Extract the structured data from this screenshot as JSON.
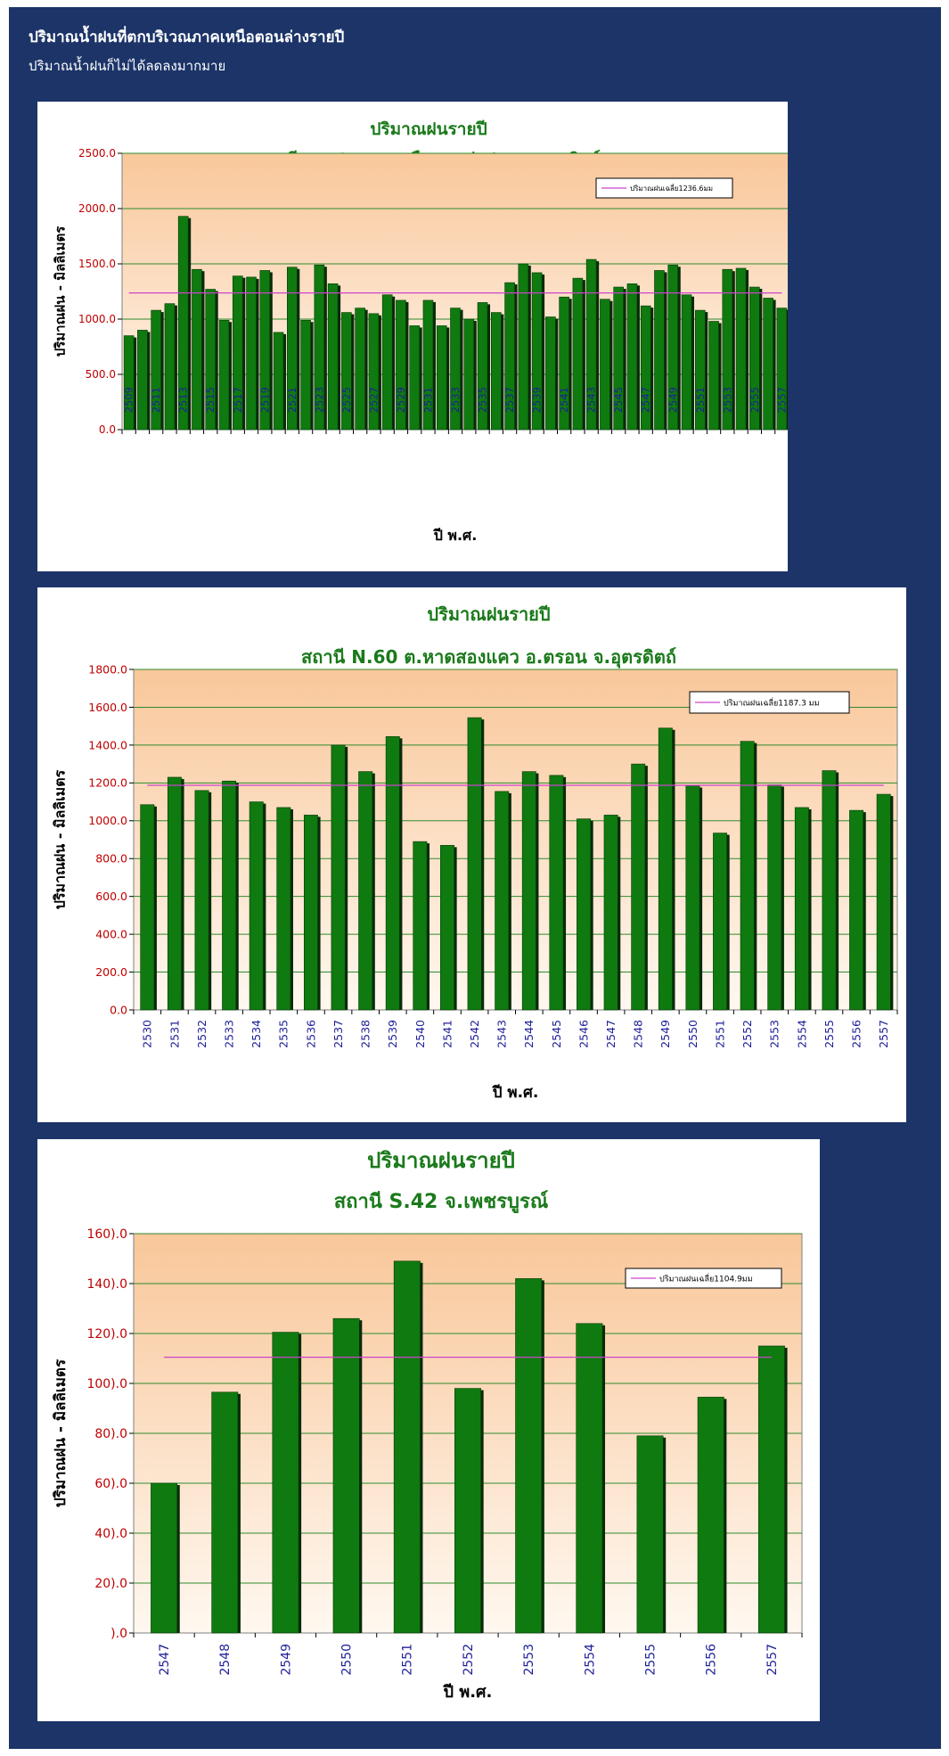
{
  "header": {
    "title": "ปริมาณน้ำฝนที่ตกบริเวณภาคเหนือตอนล่างรายปี",
    "subtitle": "ปริมาณน้ำฝนก็ไม่ได้ลดลงมากมาย"
  },
  "colors": {
    "background": "#1c3468",
    "bar": "#0f7a0f",
    "bar_shadow": "#0a2a0a",
    "average_line": "#cc44cc",
    "title": "#1a7a1a",
    "y_tick": "#c00000",
    "x_tick": "#1f1f99",
    "grid": "#2e8b2e"
  },
  "chart_data": [
    {
      "type": "bar",
      "title": "ปริมาณฝนรายปี",
      "subtitle": "สถานี N.12A  ต.ผาเลือด  อ.ท่าปลา  จ.อุตรดิตถ์",
      "xlabel": "ปี พ.ศ.",
      "ylabel": "ปริมาณฝน - มิลลิเมตร",
      "ylim": [
        0,
        2500
      ],
      "yticks": [
        "0.0",
        "500.0",
        "1000.0",
        "1500.0",
        "2000.0",
        "2500.0"
      ],
      "grid": true,
      "legend": {
        "label": "ปริมาณฝนเฉลี่ย1236.6มม",
        "placement": "top-right"
      },
      "average": 1236.6,
      "categories": [
        "2509",
        "2510",
        "2511",
        "2512",
        "2513",
        "2514",
        "2515",
        "2516",
        "2517",
        "2518",
        "2519",
        "2520",
        "2521",
        "2522",
        "2523",
        "2524",
        "2525",
        "2526",
        "2527",
        "2528",
        "2529",
        "2530",
        "2531",
        "2532",
        "2533",
        "2534",
        "2535",
        "2536",
        "2537",
        "2538",
        "2539",
        "2540",
        "2541",
        "2542",
        "2543",
        "2544",
        "2545",
        "2546",
        "2547",
        "2548",
        "2549",
        "2550",
        "2551",
        "2552",
        "2553",
        "2554",
        "2555",
        "2556",
        "2557"
      ],
      "tick_labels": [
        "2509",
        "",
        "2511",
        "",
        "2513",
        "",
        "2515",
        "",
        "2517",
        "",
        "2519",
        "",
        "2521",
        "",
        "2523",
        "",
        "2525",
        "",
        "2527",
        "",
        "2529",
        "",
        "2531",
        "",
        "2533",
        "",
        "2535",
        "",
        "2537",
        "",
        "2539",
        "",
        "2541",
        "",
        "2543",
        "",
        "2545",
        "",
        "2547",
        "",
        "2549",
        "",
        "2551",
        "",
        "2553",
        "",
        "2555",
        "",
        "2557"
      ],
      "values": [
        850,
        900,
        1080,
        1140,
        1930,
        1450,
        1270,
        990,
        1390,
        1380,
        1440,
        880,
        1470,
        990,
        1490,
        1320,
        1060,
        1100,
        1050,
        1220,
        1170,
        940,
        1170,
        940,
        1100,
        1000,
        1150,
        1060,
        1330,
        1500,
        1420,
        1020,
        1200,
        1370,
        1540,
        1180,
        1290,
        1320,
        1120,
        1440,
        1490,
        1220,
        1080,
        980,
        1450,
        1460,
        1290,
        1190,
        1100
      ]
    },
    {
      "type": "bar",
      "title": "ปริมาณฝนรายปี",
      "subtitle": "สถานี N.60  ต.หาดสองแคว  อ.ตรอน  จ.อุตรดิตถ์",
      "xlabel": "ปี พ.ศ.",
      "ylabel": "ปริมาณฝน - มิลลิเมตร",
      "ylim": [
        0,
        1800
      ],
      "yticks": [
        "0.0",
        "200.0",
        "400.0",
        "600.0",
        "800.0",
        "1000.0",
        "1200.0",
        "1400.0",
        "1600.0",
        "1800.0"
      ],
      "grid": true,
      "legend": {
        "label": "ปริมาณฝนเฉลี่ย1187.3 มม",
        "placement": "top-right"
      },
      "average": 1187.3,
      "categories": [
        "2530",
        "2531",
        "2532",
        "2533",
        "2534",
        "2535",
        "2536",
        "2537",
        "2538",
        "2539",
        "2540",
        "2541",
        "2542",
        "2543",
        "2544",
        "2545",
        "2546",
        "2547",
        "2548",
        "2549",
        "2550",
        "2551",
        "2552",
        "2553",
        "2554",
        "2555",
        "2556",
        "2557"
      ],
      "tick_labels": [
        "2530",
        "2531",
        "2532",
        "2533",
        "2534",
        "2535",
        "2536",
        "2537",
        "2538",
        "2539",
        "2540",
        "2541",
        "2542",
        "2543",
        "2544",
        "2545",
        "2546",
        "2547",
        "2548",
        "2549",
        "2550",
        "2551",
        "2552",
        "2553",
        "2554",
        "2555",
        "2556",
        "2557"
      ],
      "values": [
        1085,
        1230,
        1160,
        1210,
        1100,
        1070,
        1030,
        1400,
        1260,
        1445,
        890,
        870,
        1545,
        1155,
        1260,
        1240,
        1010,
        1030,
        1300,
        1490,
        1185,
        935,
        1420,
        1190,
        1070,
        1265,
        1055,
        1140
      ]
    },
    {
      "type": "bar",
      "title": "ปริมาณฝนรายปี",
      "subtitle": "สถานี S.42 จ.เพชรบูรณ์",
      "xlabel": "ปี พ.ศ.",
      "ylabel": "ปริมาณฝน - มิลลิเมตร",
      "ylim": [
        0,
        1600
      ],
      "yticks": [
        ").0",
        "20).0",
        "40).0",
        "60).0",
        "80).0",
        "100).0",
        "120).0",
        "140).0",
        "160).0"
      ],
      "grid": true,
      "legend": {
        "label": "ปริมาณฝนเฉลี่ย1104.9มม",
        "placement": "top-right"
      },
      "average": 1104.9,
      "categories": [
        "2547",
        "2548",
        "2549",
        "2550",
        "2551",
        "2552",
        "2553",
        "2554",
        "2555",
        "2556",
        "2557"
      ],
      "tick_labels": [
        "2547",
        "2548",
        "2549",
        "2550",
        "2551",
        "2552",
        "2553",
        "2554",
        "2555",
        "2556",
        "2557"
      ],
      "values": [
        600,
        965,
        1205,
        1260,
        1490,
        980,
        1420,
        1240,
        790,
        945,
        1150
      ]
    }
  ]
}
